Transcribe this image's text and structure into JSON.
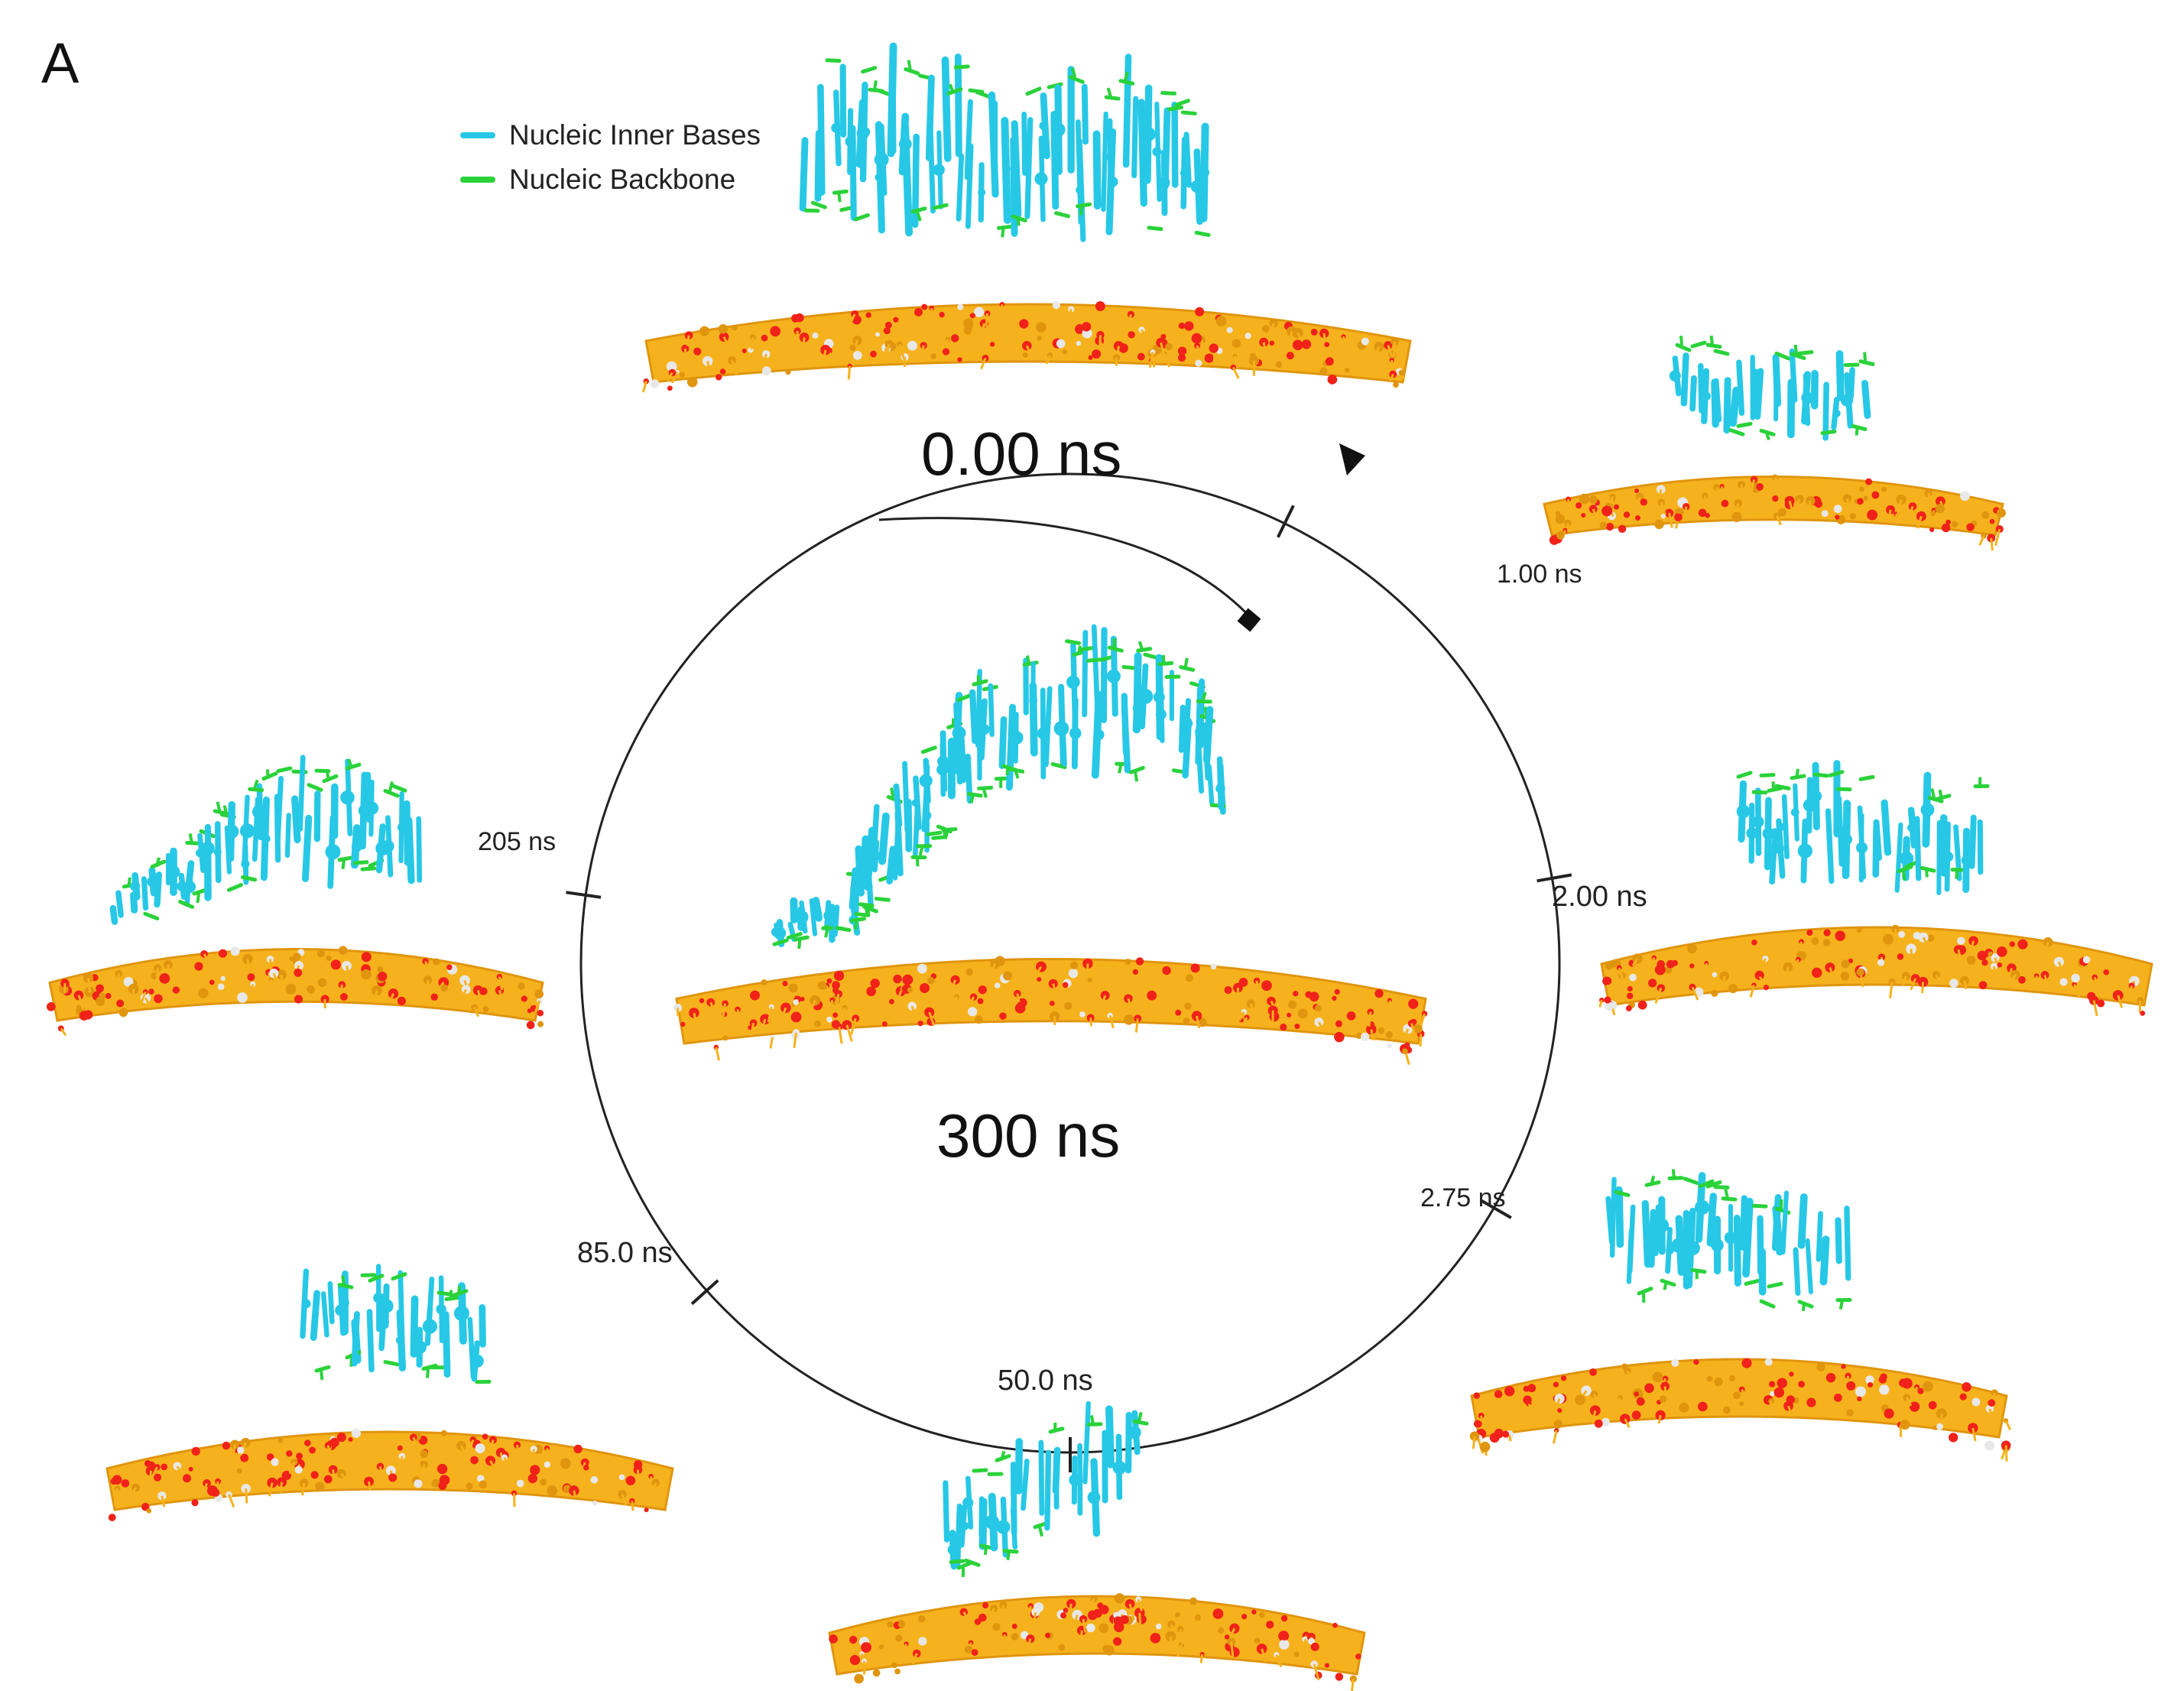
{
  "panel_label": "A",
  "legend": {
    "items": [
      {
        "label": "Nucleic Inner Bases",
        "color": "#27c8e6"
      },
      {
        "label": "Nucleic Backbone",
        "color": "#2ad23a"
      }
    ]
  },
  "colors": {
    "bases": "#27c8e6",
    "backbone": "#2ad23a",
    "sheet": "#f6b21c",
    "sheet_dark": "#e0950e",
    "oxygen": "#f0221a",
    "hydrogen": "#e8e8e8",
    "ring": "#222222"
  },
  "timeline": {
    "start_label": "0.00 ns",
    "center_label": "300 ns",
    "ticks": [
      {
        "label": "1.00 ns"
      },
      {
        "label": "2.00 ns"
      },
      {
        "label": "2.75 ns"
      },
      {
        "label": "50.0 ns"
      },
      {
        "label": "85.0 ns"
      },
      {
        "label": "205 ns"
      }
    ]
  }
}
